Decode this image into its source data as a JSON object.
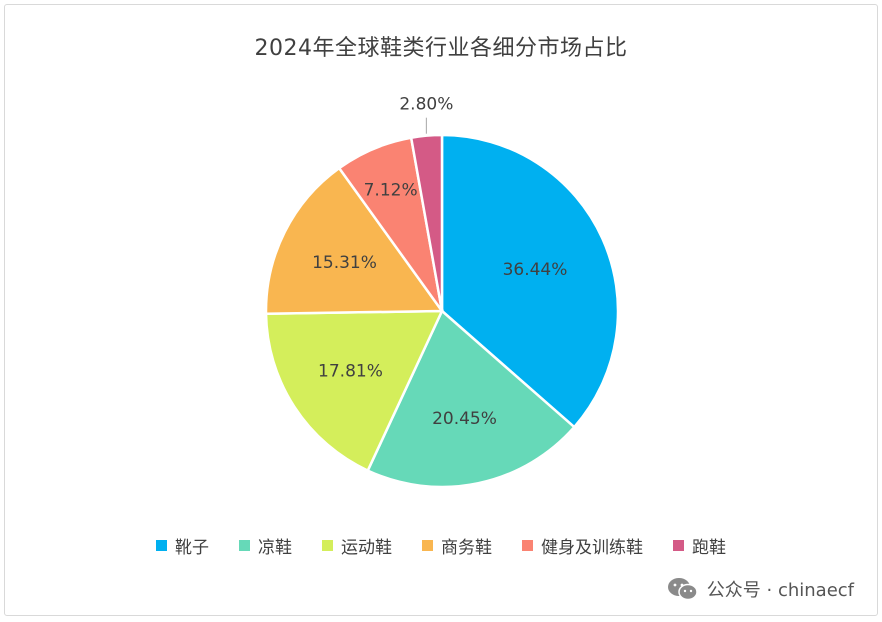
{
  "chart_data": {
    "type": "pie",
    "title": "2024年全球鞋类行业各细分市场占比",
    "categories": [
      "靴子",
      "凉鞋",
      "运动鞋",
      "商务鞋",
      "健身及训练鞋",
      "跑鞋"
    ],
    "values": [
      36.44,
      20.45,
      17.81,
      15.31,
      7.12,
      2.8
    ],
    "labels": [
      "36.44%",
      "20.45%",
      "17.81%",
      "15.31%",
      "7.12%",
      "2.80%"
    ],
    "colors": [
      "#00B0F0",
      "#66D9B8",
      "#D4EE5B",
      "#F9B650",
      "#FA8372",
      "#D45A86"
    ],
    "legend_position": "bottom"
  },
  "watermark": {
    "text": "公众号 · chinaecf",
    "icon": "wechat-icon"
  }
}
